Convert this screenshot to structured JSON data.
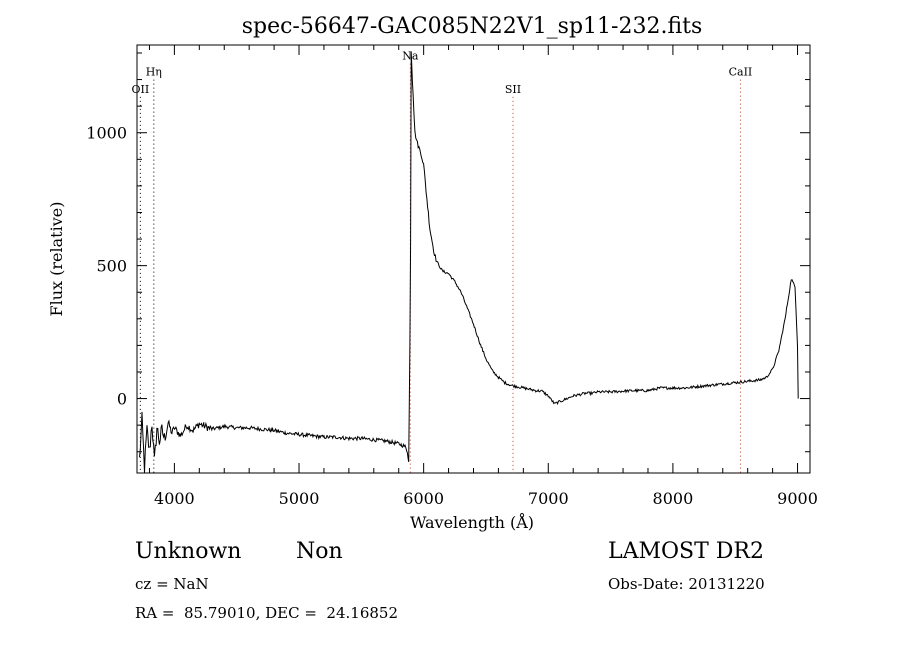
{
  "chart_data": {
    "type": "line",
    "title": "spec-56647-GAC085N22V1_sp11-232.fits",
    "xlabel": "Wavelength (Å)",
    "ylabel": "Flux (relative)",
    "xlim": [
      3700,
      9100
    ],
    "ylim": [
      -280,
      1330
    ],
    "xticks": [
      4000,
      5000,
      6000,
      7000,
      8000,
      9000
    ],
    "yticks": [
      0,
      500,
      1000
    ],
    "grid": false,
    "spectral_lines": [
      {
        "name": "OII",
        "wavelength": 3727,
        "label_flux": 1150
      },
      {
        "name": "Hη",
        "wavelength": 3835,
        "label_flux": 1215
      },
      {
        "name": "Na",
        "wavelength": 5893,
        "label_flux": 1275
      },
      {
        "name": "SII",
        "wavelength": 6717,
        "label_flux": 1150
      },
      {
        "name": "CaII",
        "wavelength": 8542,
        "label_flux": 1215
      }
    ],
    "series": [
      {
        "x": [
          3720,
          3740,
          3760,
          3780,
          3800,
          3820,
          3840,
          3860,
          3880,
          3900,
          3920,
          3950,
          3980,
          4000,
          4050,
          4100,
          4150,
          4200,
          4300,
          4400,
          4500,
          4600,
          4700,
          4800,
          4900,
          5000,
          5100,
          5200,
          5300,
          5400,
          5500,
          5600,
          5700,
          5800,
          5850,
          5870,
          5880,
          5890,
          5895,
          5900,
          5910,
          5920,
          5930,
          5950,
          5980,
          6000,
          6020,
          6050,
          6080,
          6100,
          6150,
          6200,
          6250,
          6300,
          6350,
          6400,
          6450,
          6500,
          6550,
          6600,
          6650,
          6700,
          6750,
          6800,
          6850,
          6900,
          6950,
          7000,
          7050,
          7100,
          7150,
          7200,
          7250,
          7300,
          7350,
          7400,
          7500,
          7600,
          7700,
          7800,
          7900,
          8000,
          8100,
          8200,
          8300,
          8400,
          8500,
          8600,
          8700,
          8750,
          8800,
          8850,
          8900,
          8950,
          8980,
          9000,
          9005
        ],
        "y": [
          -230,
          -80,
          -260,
          -120,
          -200,
          -90,
          -240,
          -110,
          -160,
          -120,
          -150,
          -90,
          -130,
          -110,
          -140,
          -100,
          -120,
          -95,
          -115,
          -105,
          -110,
          -110,
          -115,
          -120,
          -130,
          -135,
          -140,
          -145,
          -145,
          -150,
          -150,
          -155,
          -160,
          -170,
          -180,
          -200,
          -240,
          200,
          600,
          1310,
          1200,
          1100,
          1000,
          960,
          920,
          880,
          780,
          640,
          560,
          520,
          480,
          470,
          440,
          400,
          340,
          280,
          210,
          150,
          105,
          80,
          60,
          50,
          45,
          40,
          35,
          30,
          28,
          10,
          -20,
          -10,
          0,
          10,
          15,
          20,
          20,
          25,
          25,
          28,
          30,
          30,
          40,
          40,
          40,
          45,
          50,
          55,
          60,
          65,
          70,
          80,
          110,
          180,
          300,
          450,
          420,
          200,
          0
        ]
      }
    ]
  },
  "info": {
    "class": "Unknown",
    "subclass": "Non",
    "cz": "cz = NaN",
    "radec": "RA =  85.79010, DEC =  24.16852",
    "survey": "LAMOST DR2",
    "obsdate": "Obs-Date: 20131220"
  }
}
